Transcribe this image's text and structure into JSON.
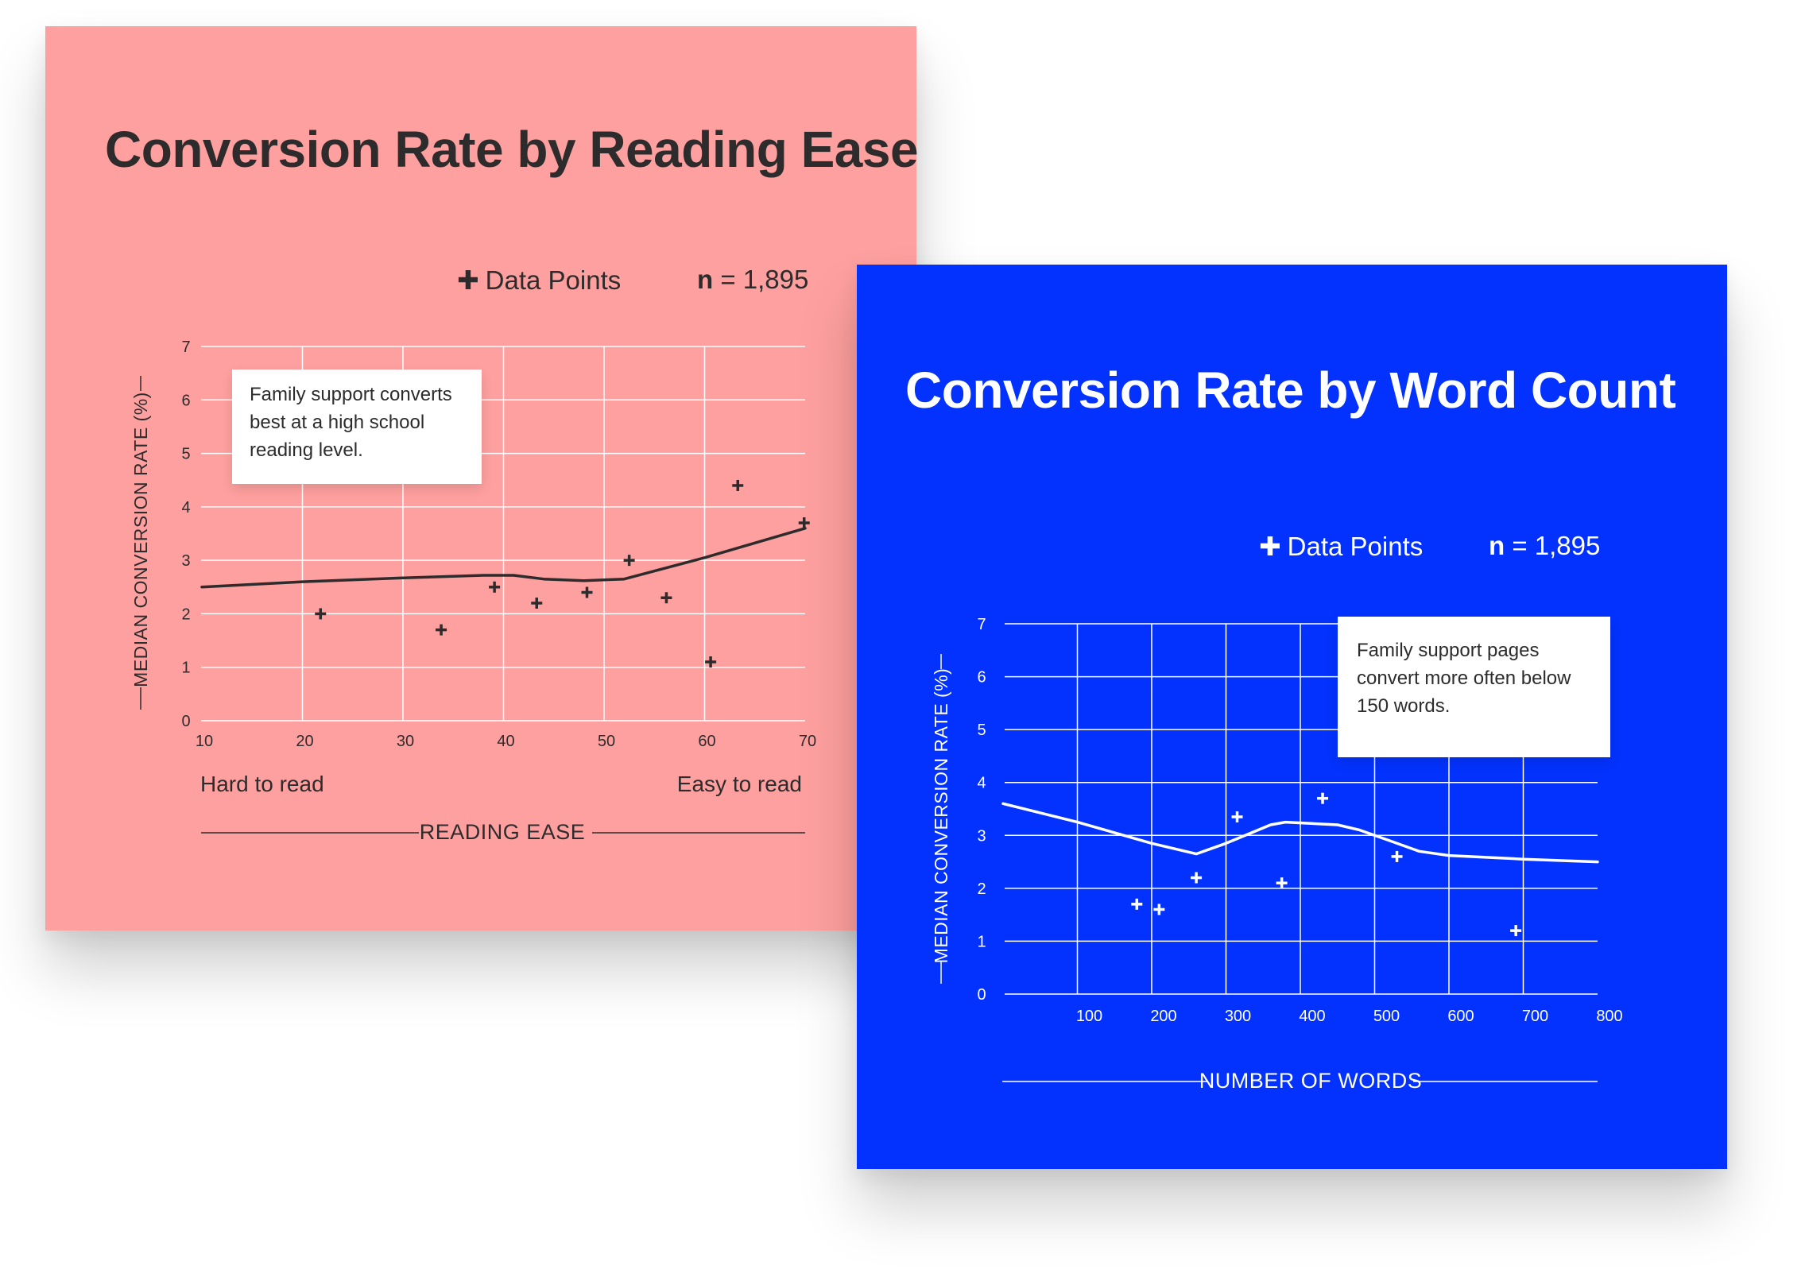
{
  "charts": [
    {
      "title": "Conversion Rate by Reading Ease",
      "legend": "Data Points",
      "n_bold": "n",
      "n_value": "= 1,895",
      "annotation": [
        "Family support converts",
        "best at a high school",
        "reading level."
      ],
      "left_note": "Hard to read",
      "right_note": "Easy to read",
      "colors": {
        "background": "#fea09f",
        "ink": "#2d2b2b",
        "grid": "#ffffff"
      }
    },
    {
      "title": "Conversion Rate by Word Count",
      "legend": "Data Points",
      "n_bold": "n",
      "n_value": "= 1,895",
      "annotation": [
        "Family support pages",
        "convert more often below",
        "150 words."
      ],
      "colors": {
        "background": "#0332fe",
        "ink": "#ffffff",
        "grid": "#ffffff"
      }
    }
  ],
  "chart_data": [
    {
      "type": "scatter",
      "title": "Conversion Rate by Reading Ease",
      "xlabel": "READING EASE",
      "ylabel": "MEDIAN CONVERSION RATE (%)",
      "xlim": [
        10,
        70
      ],
      "ylim": [
        0,
        7
      ],
      "xticks": [
        10,
        20,
        30,
        40,
        50,
        60,
        70
      ],
      "yticks": [
        0,
        1,
        2,
        3,
        4,
        5,
        6,
        7
      ],
      "grid": true,
      "legend_position": "top-right",
      "series": [
        {
          "name": "Data Points",
          "x": [
            21.8,
            33.8,
            39.1,
            43.3,
            48.3,
            52.5,
            56.2,
            60.6,
            63.3,
            69.9
          ],
          "y": [
            2.0,
            1.7,
            2.5,
            2.2,
            2.4,
            3.0,
            2.3,
            1.1,
            4.4,
            3.7
          ]
        }
      ],
      "trend": {
        "x": [
          10,
          20,
          30,
          38,
          41,
          44,
          48,
          52,
          53,
          60,
          70
        ],
        "y": [
          2.5,
          2.6,
          2.67,
          2.72,
          2.72,
          2.65,
          2.62,
          2.65,
          2.7,
          3.05,
          3.6
        ]
      }
    },
    {
      "type": "scatter",
      "title": "Conversion Rate by Word Count",
      "xlabel": "NUMBER OF WORDS",
      "ylabel": "MEDIAN CONVERSION RATE (%)",
      "xlim": [
        0,
        800
      ],
      "ylim": [
        0,
        7
      ],
      "xticks": [
        100,
        200,
        300,
        400,
        500,
        600,
        700,
        800
      ],
      "yticks": [
        0,
        1,
        2,
        3,
        4,
        5,
        6,
        7
      ],
      "grid": true,
      "legend_position": "top-right",
      "series": [
        {
          "name": "Data Points",
          "x": [
            180,
            210,
            260,
            315,
            375,
            430,
            530,
            690
          ],
          "y": [
            1.7,
            1.6,
            2.2,
            3.35,
            2.1,
            3.7,
            2.6,
            1.2
          ]
        }
      ],
      "trend": {
        "x": [
          0,
          100,
          200,
          260,
          300,
          360,
          380,
          450,
          480,
          520,
          560,
          600,
          700,
          800
        ],
        "y": [
          3.6,
          3.25,
          2.85,
          2.65,
          2.85,
          3.2,
          3.25,
          3.2,
          3.1,
          2.9,
          2.7,
          2.62,
          2.55,
          2.5
        ]
      }
    }
  ]
}
